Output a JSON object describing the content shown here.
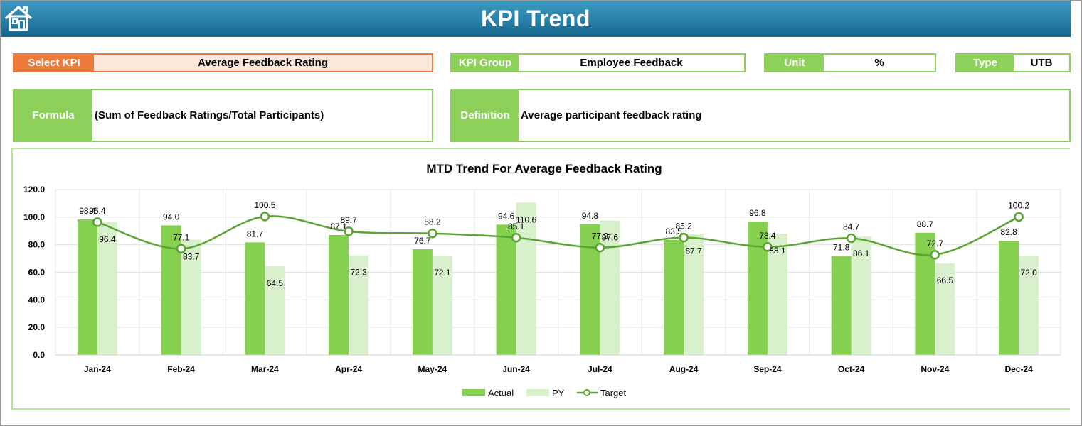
{
  "header": {
    "title": "KPI Trend",
    "home_icon": "home-icon"
  },
  "fields": {
    "select_kpi": {
      "label": "Select KPI",
      "value": "Average Feedback Rating"
    },
    "kpi_group": {
      "label": "KPI Group",
      "value": "Employee Feedback"
    },
    "unit": {
      "label": "Unit",
      "value": "%"
    },
    "type": {
      "label": "Type",
      "value": "UTB"
    },
    "formula": {
      "label": "Formula",
      "value": "(Sum of Feedback Ratings/Total Participants)"
    },
    "definition": {
      "label": "Definition",
      "value": "Average participant feedback rating"
    }
  },
  "colors": {
    "header": "#1f7ca6",
    "accent_green": "#8dd05a",
    "select_orange": "#ec7a3a",
    "actual_bar": "#86d04f",
    "py_bar": "#d8f0cb",
    "target_line": "#5aa532"
  },
  "chart_data": {
    "type": "bar",
    "title": "MTD Trend For Average Feedback Rating",
    "categories": [
      "Jan-24",
      "Feb-24",
      "Mar-24",
      "Apr-24",
      "May-24",
      "Jun-24",
      "Jul-24",
      "Aug-24",
      "Sep-24",
      "Oct-24",
      "Nov-24",
      "Dec-24"
    ],
    "series": [
      {
        "name": "Actual",
        "kind": "bar",
        "values": [
          98.4,
          94.0,
          81.7,
          87.1,
          76.7,
          94.6,
          94.8,
          83.5,
          96.8,
          71.8,
          88.7,
          82.8
        ]
      },
      {
        "name": "PY",
        "kind": "bar",
        "values": [
          96.4,
          83.7,
          64.5,
          72.3,
          72.1,
          110.6,
          97.6,
          87.7,
          88.1,
          86.1,
          66.5,
          72.0
        ]
      },
      {
        "name": "Target",
        "kind": "line",
        "values": [
          96.4,
          77.1,
          100.5,
          89.7,
          88.2,
          85.1,
          77.9,
          85.2,
          78.4,
          84.7,
          72.7,
          100.2
        ]
      }
    ],
    "labels": {
      "actual": [
        "98.4",
        "94.0",
        "81.7",
        "87.1",
        "76.7",
        "94.6",
        "94.8",
        "83.5",
        "96.8",
        "71.8",
        "88.7",
        "82.8"
      ],
      "py": [
        "96.4",
        "83.7",
        "64.5",
        "72.3",
        "72.1",
        "110.6",
        "97.6",
        "87.7",
        "88.1",
        "86.1",
        "66.5",
        "72.0"
      ],
      "target": [
        "96.4",
        "77.1",
        "100.5",
        "89.7",
        "88.2",
        "85.1",
        "77.9",
        "85.2",
        "78.4",
        "84.7",
        "72.7",
        "100.2"
      ]
    },
    "yticks": [
      "0.0",
      "20.0",
      "40.0",
      "60.0",
      "80.0",
      "100.0",
      "120.0"
    ],
    "ylim": [
      0,
      120
    ],
    "grid": true,
    "legend": "bottom-center"
  }
}
